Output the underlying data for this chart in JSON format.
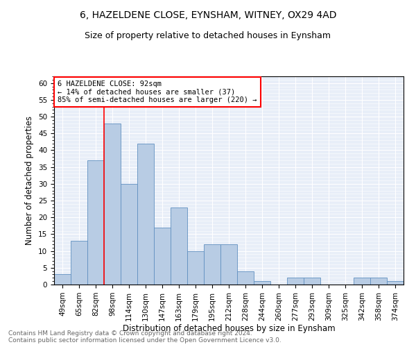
{
  "title1": "6, HAZELDENE CLOSE, EYNSHAM, WITNEY, OX29 4AD",
  "title2": "Size of property relative to detached houses in Eynsham",
  "xlabel": "Distribution of detached houses by size in Eynsham",
  "ylabel": "Number of detached properties",
  "categories": [
    "49sqm",
    "65sqm",
    "82sqm",
    "98sqm",
    "114sqm",
    "130sqm",
    "147sqm",
    "163sqm",
    "179sqm",
    "195sqm",
    "212sqm",
    "228sqm",
    "244sqm",
    "260sqm",
    "277sqm",
    "293sqm",
    "309sqm",
    "325sqm",
    "342sqm",
    "358sqm",
    "374sqm"
  ],
  "values": [
    3,
    13,
    37,
    48,
    30,
    42,
    17,
    23,
    10,
    12,
    12,
    4,
    1,
    0,
    2,
    2,
    0,
    0,
    2,
    2,
    1
  ],
  "bar_color": "#b8cce4",
  "bar_edge_color": "#6090c0",
  "annotation_text": "6 HAZELDENE CLOSE: 92sqm\n← 14% of detached houses are smaller (37)\n85% of semi-detached houses are larger (220) →",
  "annotation_box_color": "white",
  "annotation_box_edge_color": "red",
  "vline_color": "red",
  "ylim": [
    0,
    62
  ],
  "yticks": [
    0,
    5,
    10,
    15,
    20,
    25,
    30,
    35,
    40,
    45,
    50,
    55,
    60
  ],
  "footer": "Contains HM Land Registry data © Crown copyright and database right 2024.\nContains public sector information licensed under the Open Government Licence v3.0.",
  "bg_color": "#e8eef8",
  "grid_color": "white",
  "title1_fontsize": 10,
  "title2_fontsize": 9,
  "xlabel_fontsize": 8.5,
  "ylabel_fontsize": 8.5,
  "footer_fontsize": 6.5,
  "tick_fontsize": 7.5,
  "annot_fontsize": 7.5
}
